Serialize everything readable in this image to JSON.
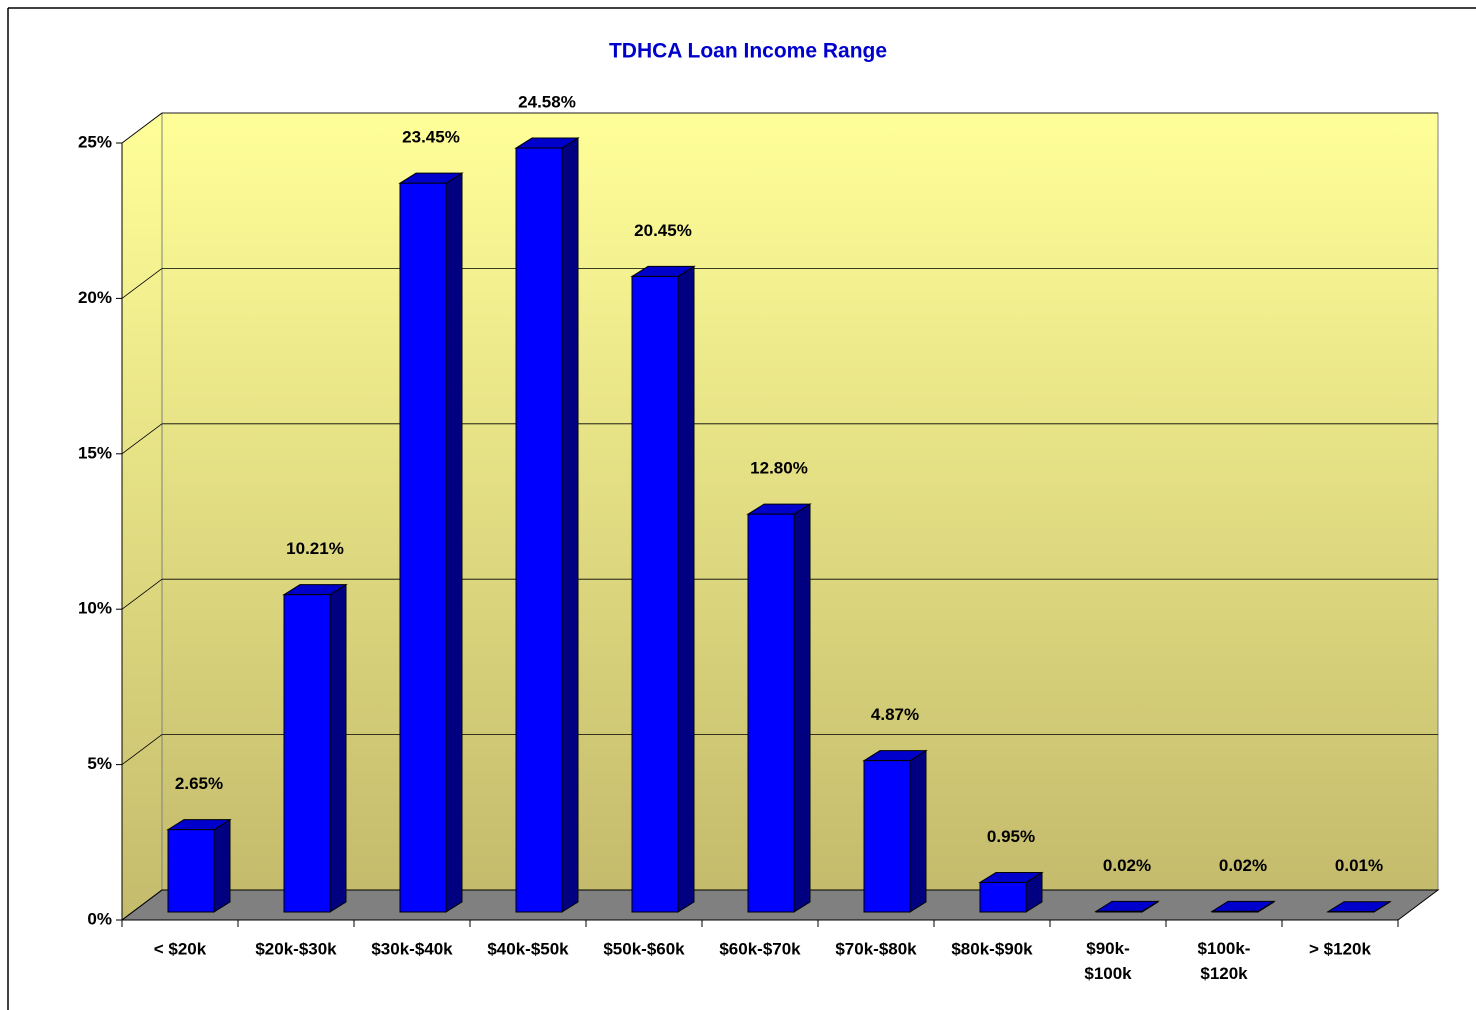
{
  "chart_data": {
    "type": "bar",
    "title": "TDHCA Loan Income Range",
    "categories": [
      "< $20k",
      "$20k-$30k",
      "$30k-$40k",
      "$40k-$50k",
      "$50k-$60k",
      "$60k-$70k",
      "$70k-$80k",
      "$80k-$90k",
      "$90k-$100k",
      "$100k-$120k",
      "> $120k"
    ],
    "values": [
      2.65,
      10.21,
      23.45,
      24.58,
      20.45,
      12.8,
      4.87,
      0.95,
      0.02,
      0.02,
      0.01
    ],
    "value_labels": [
      "2.65%",
      "10.21%",
      "23.45%",
      "24.58%",
      "20.45%",
      "12.80%",
      "4.87%",
      "0.95%",
      "0.02%",
      "0.02%",
      "0.01%"
    ],
    "color": "#0000ff",
    "ylim": [
      0,
      25
    ],
    "yticks": [
      {
        "value": 0,
        "label": "0%"
      },
      {
        "value": 5,
        "label": "5%"
      },
      {
        "value": 10,
        "label": "10%"
      },
      {
        "value": 15,
        "label": "15%"
      },
      {
        "value": 20,
        "label": "20%"
      },
      {
        "value": 25,
        "label": "25%"
      }
    ],
    "grid": true
  }
}
